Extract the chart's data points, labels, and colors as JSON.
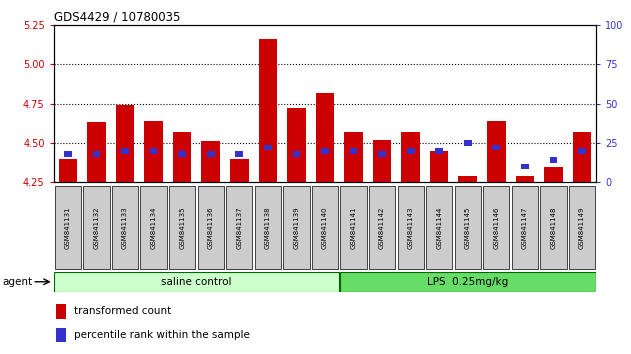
{
  "title": "GDS4429 / 10780035",
  "samples": [
    "GSM841131",
    "GSM841132",
    "GSM841133",
    "GSM841134",
    "GSM841135",
    "GSM841136",
    "GSM841137",
    "GSM841138",
    "GSM841139",
    "GSM841140",
    "GSM841141",
    "GSM841142",
    "GSM841143",
    "GSM841144",
    "GSM841145",
    "GSM841146",
    "GSM841147",
    "GSM841148",
    "GSM841149"
  ],
  "red_values": [
    4.4,
    4.63,
    4.74,
    4.64,
    4.57,
    4.51,
    4.4,
    5.16,
    4.72,
    4.82,
    4.57,
    4.52,
    4.57,
    4.45,
    4.29,
    4.64,
    4.29,
    4.35,
    4.57
  ],
  "blue_values": [
    18,
    18,
    20,
    20,
    18,
    18,
    18,
    22,
    18,
    20,
    20,
    18,
    20,
    20,
    25,
    22,
    10,
    14,
    20
  ],
  "ylim_left": [
    4.25,
    5.25
  ],
  "ylim_right": [
    0,
    100
  ],
  "yticks_left": [
    4.25,
    4.5,
    4.75,
    5.0,
    5.25
  ],
  "yticks_right": [
    0,
    25,
    50,
    75,
    100
  ],
  "grid_values": [
    4.5,
    4.75,
    5.0
  ],
  "left_color": "#cc0000",
  "right_color": "#3333cc",
  "bar_color": "#cc0000",
  "blue_bar_color": "#3333cc",
  "group1_label": "saline control",
  "group2_label": "LPS  0.25mg/kg",
  "group1_count": 10,
  "group2_count": 9,
  "agent_label": "agent",
  "legend_red": "transformed count",
  "legend_blue": "percentile rank within the sample",
  "group_bg1": "#ccffcc",
  "group_bg2": "#66dd66",
  "bar_bottom": 4.25,
  "label_box_color": "#cccccc",
  "fig_bg": "#ffffff"
}
